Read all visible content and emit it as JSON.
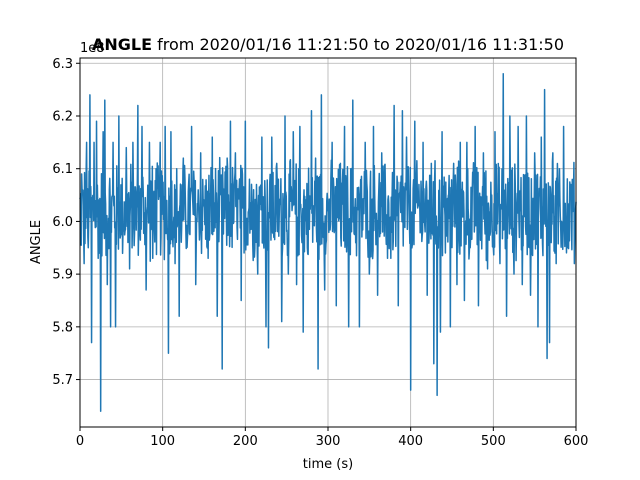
{
  "chart_data": {
    "type": "line",
    "title_bold": "ANGLE",
    "title_rest": " from 2020/01/16 11:21:50 to 2020/01/16 11:31:50",
    "xlabel": "time (s)",
    "ylabel": "ANGLE",
    "offset_label": "1e8",
    "xlim": [
      0,
      600
    ],
    "ylim": [
      5.61,
      6.31
    ],
    "xticks": [
      0,
      100,
      200,
      300,
      400,
      500,
      600
    ],
    "yticks": [
      5.7,
      5.8,
      5.9,
      6.0,
      6.1,
      6.2,
      6.3
    ],
    "grid": true,
    "series": [
      {
        "color": "#1f77b4",
        "baseline": 6.02,
        "noise_range": [
          5.92,
          6.13
        ],
        "spikes": [
          [
            2,
            6.09
          ],
          [
            5,
            5.92
          ],
          [
            8,
            6.15
          ],
          [
            10,
            5.95
          ],
          [
            12,
            6.24
          ],
          [
            14,
            5.77
          ],
          [
            17,
            6.15
          ],
          [
            20,
            6.19
          ],
          [
            22,
            5.93
          ],
          [
            25,
            5.64
          ],
          [
            28,
            6.17
          ],
          [
            30,
            6.23
          ],
          [
            33,
            5.88
          ],
          [
            37,
            5.8
          ],
          [
            40,
            6.15
          ],
          [
            43,
            5.8
          ],
          [
            47,
            6.2
          ],
          [
            52,
            5.98
          ],
          [
            56,
            6.14
          ],
          [
            60,
            5.91
          ],
          [
            64,
            6.15
          ],
          [
            70,
            6.22
          ],
          [
            75,
            6.18
          ],
          [
            80,
            5.87
          ],
          [
            84,
            6.15
          ],
          [
            88,
            5.93
          ],
          [
            92,
            6.1
          ],
          [
            97,
            6.15
          ],
          [
            103,
            6.18
          ],
          [
            107,
            5.75
          ],
          [
            110,
            6.17
          ],
          [
            115,
            5.92
          ],
          [
            120,
            5.82
          ],
          [
            125,
            6.12
          ],
          [
            130,
            5.97
          ],
          [
            135,
            6.18
          ],
          [
            140,
            5.88
          ],
          [
            146,
            6.13
          ],
          [
            150,
            6.03
          ],
          [
            155,
            5.93
          ],
          [
            160,
            6.16
          ],
          [
            166,
            5.82
          ],
          [
            172,
            5.72
          ],
          [
            178,
            6.12
          ],
          [
            182,
            6.19
          ],
          [
            188,
            6.13
          ],
          [
            195,
            5.85
          ],
          [
            200,
            6.19
          ],
          [
            205,
            6.08
          ],
          [
            210,
            6.06
          ],
          [
            215,
            5.9
          ],
          [
            220,
            6.16
          ],
          [
            225,
            5.8
          ],
          [
            228,
            5.76
          ],
          [
            232,
            6.16
          ],
          [
            238,
            6.11
          ],
          [
            244,
            5.81
          ],
          [
            248,
            6.2
          ],
          [
            252,
            5.9
          ],
          [
            258,
            6.17
          ],
          [
            262,
            5.88
          ],
          [
            266,
            6.18
          ],
          [
            270,
            5.79
          ],
          [
            275,
            5.95
          ],
          [
            280,
            6.21
          ],
          [
            285,
            6.12
          ],
          [
            288,
            5.72
          ],
          [
            292,
            6.24
          ],
          [
            296,
            5.87
          ],
          [
            300,
            6.02
          ],
          [
            305,
            6.15
          ],
          [
            310,
            5.84
          ],
          [
            315,
            6.11
          ],
          [
            320,
            6.18
          ],
          [
            325,
            5.8
          ],
          [
            330,
            6.23
          ],
          [
            335,
            6.01
          ],
          [
            338,
            5.8
          ],
          [
            345,
            6.15
          ],
          [
            350,
            5.9
          ],
          [
            355,
            6.18
          ],
          [
            360,
            5.86
          ],
          [
            365,
            6.13
          ],
          [
            372,
            5.93
          ],
          [
            376,
            5.93
          ],
          [
            380,
            6.22
          ],
          [
            385,
            5.84
          ],
          [
            390,
            6.21
          ],
          [
            395,
            6.16
          ],
          [
            400,
            5.68
          ],
          [
            405,
            6.19
          ],
          [
            410,
            6.07
          ],
          [
            415,
            6.15
          ],
          [
            420,
            5.86
          ],
          [
            425,
            6.11
          ],
          [
            428,
            5.73
          ],
          [
            432,
            5.67
          ],
          [
            436,
            5.79
          ],
          [
            438,
            6.17
          ],
          [
            442,
            5.94
          ],
          [
            448,
            5.8
          ],
          [
            452,
            6.11
          ],
          [
            456,
            5.88
          ],
          [
            460,
            6.15
          ],
          [
            465,
            5.85
          ],
          [
            468,
            6.15
          ],
          [
            472,
            5.95
          ],
          [
            478,
            6.18
          ],
          [
            482,
            5.84
          ],
          [
            488,
            6.13
          ],
          [
            493,
            5.91
          ],
          [
            498,
            6.05
          ],
          [
            502,
            6.17
          ],
          [
            508,
            5.92
          ],
          [
            512,
            6.28
          ],
          [
            516,
            5.82
          ],
          [
            520,
            6.2
          ],
          [
            525,
            5.9
          ],
          [
            530,
            6.18
          ],
          [
            535,
            5.88
          ],
          [
            540,
            6.2
          ],
          [
            545,
            5.86
          ],
          [
            550,
            6.13
          ],
          [
            554,
            5.8
          ],
          [
            558,
            6.16
          ],
          [
            562,
            6.25
          ],
          [
            565,
            5.74
          ],
          [
            568,
            5.77
          ],
          [
            572,
            6.13
          ],
          [
            576,
            5.92
          ],
          [
            580,
            6.1
          ],
          [
            585,
            6.18
          ],
          [
            590,
            5.95
          ],
          [
            594,
            6.07
          ],
          [
            598,
            5.92
          ]
        ]
      }
    ]
  }
}
